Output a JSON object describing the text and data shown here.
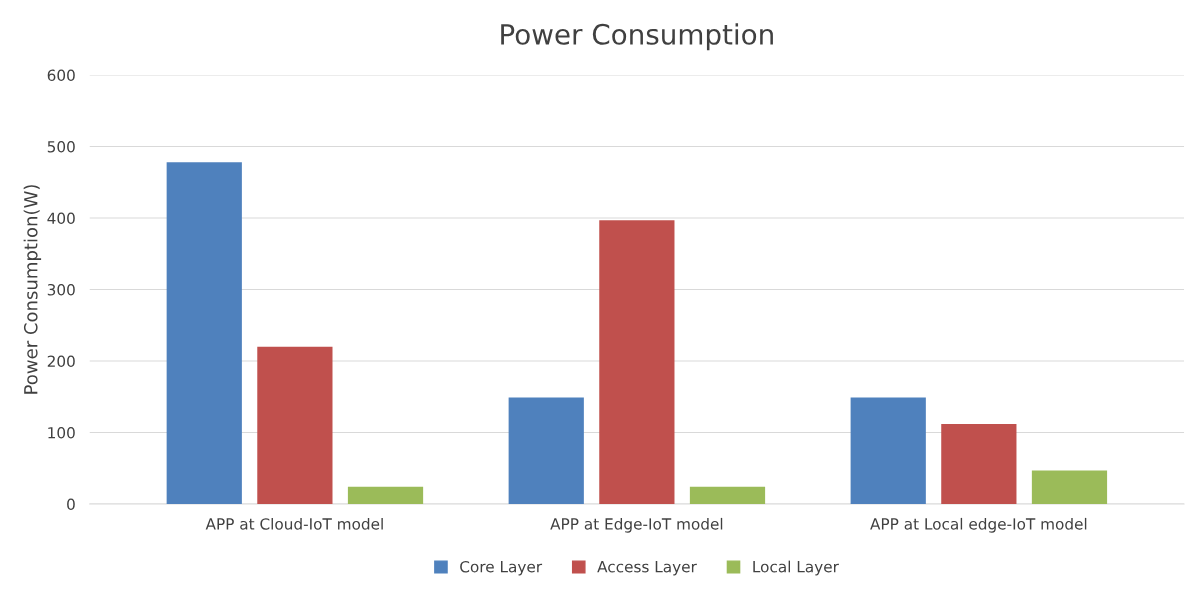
{
  "chart_data": {
    "type": "bar",
    "title": "Power Consumption",
    "ylabel": "Power Consumption(W)",
    "categories": [
      "APP at Cloud-IoT model",
      "APP at Edge-IoT model",
      "APP at Local edge-IoT model"
    ],
    "series": [
      {
        "name": "Core Layer",
        "color": "#4f81bd",
        "values": [
          478,
          149,
          149
        ]
      },
      {
        "name": "Access Layer",
        "color": "#c0504d",
        "values": [
          220,
          397,
          112
        ]
      },
      {
        "name": "Local Layer",
        "color": "#9bbb59",
        "values": [
          24,
          24,
          47
        ]
      }
    ],
    "ylim": [
      0,
      600
    ],
    "yticks": [
      0,
      100,
      200,
      300,
      400,
      500,
      600
    ],
    "grid": "y",
    "legend": "bottom"
  }
}
